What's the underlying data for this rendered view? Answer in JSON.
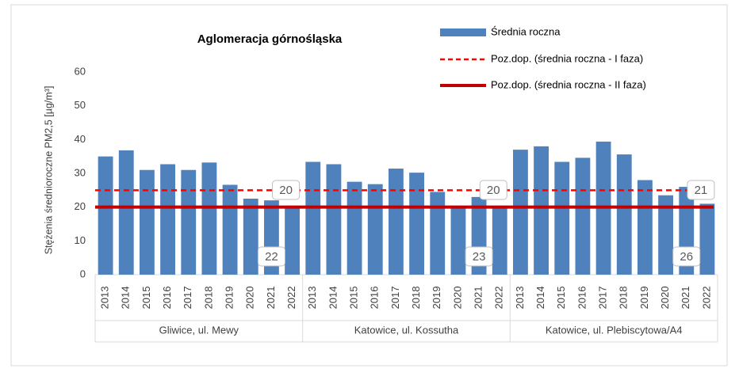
{
  "chart_data": {
    "type": "bar",
    "title": "Aglomeracja górnośląska",
    "y_label": "Stężenia średnioroczne PM2,5 [µg/m³]",
    "categories": [
      "2013",
      "2014",
      "2015",
      "2016",
      "2017",
      "2018",
      "2019",
      "2020",
      "2021",
      "2022",
      "2013",
      "2014",
      "2015",
      "2016",
      "2017",
      "2018",
      "2019",
      "2020",
      "2021",
      "2022",
      "2013",
      "2014",
      "2015",
      "2016",
      "2017",
      "2018",
      "2019",
      "2020",
      "2021",
      "2022"
    ],
    "groups": [
      "Gliwice, ul. Mewy",
      "Katowice, ul. Kossutha",
      "Katowice, ul. Plebiscytowa/A4"
    ],
    "series": [
      {
        "name": "Średnia roczna",
        "color": "#4f81bd",
        "values": [
          35,
          36.8,
          31,
          32.7,
          31,
          33.2,
          26.6,
          22.5,
          22,
          20,
          33.4,
          32.7,
          27.5,
          26.8,
          31.4,
          30.2,
          24.5,
          20,
          23,
          20,
          37,
          38,
          33.4,
          34.6,
          39.4,
          35.6,
          28,
          23.5,
          26,
          21
        ],
        "value_labels": [
          null,
          null,
          null,
          null,
          null,
          null,
          null,
          null,
          "22",
          "20",
          null,
          null,
          null,
          null,
          null,
          null,
          null,
          null,
          "23",
          "20",
          null,
          null,
          null,
          null,
          null,
          null,
          null,
          null,
          "26",
          "21"
        ]
      }
    ],
    "reference_lines": [
      {
        "name": "Poz.dop. (średnia roczna - I faza)",
        "value": 25,
        "color": "#ff0000",
        "style": "dashed"
      },
      {
        "name": "Poz.dop. (średnia roczna - II faza)",
        "value": 20,
        "color": "#c00000",
        "style": "solid"
      }
    ],
    "ylim": [
      0,
      60
    ],
    "yticks": [
      0,
      10,
      20,
      30,
      40,
      50,
      60
    ],
    "grid": false
  }
}
